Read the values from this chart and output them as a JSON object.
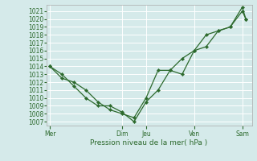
{
  "title": "",
  "xlabel": "Pression niveau de la mer( hPa )",
  "ylabel": "",
  "background_color": "#d5eaea",
  "grid_color": "#ffffff",
  "line_color": "#2d6a2d",
  "ylim": [
    1006.5,
    1021.8
  ],
  "yticks": [
    1007,
    1008,
    1009,
    1010,
    1011,
    1012,
    1013,
    1014,
    1015,
    1016,
    1017,
    1018,
    1019,
    1020,
    1021
  ],
  "x_ticks_labels": [
    "Mer",
    "Dim",
    "Jeu",
    "Ven",
    "Sam"
  ],
  "x_ticks_pos": [
    0,
    3,
    4,
    6,
    8
  ],
  "xlim": [
    -0.15,
    8.4
  ],
  "line1_x": [
    0,
    0.5,
    1.0,
    1.5,
    2.0,
    2.5,
    3.0,
    3.5,
    4.0,
    4.5,
    5.0,
    5.5,
    6.0,
    6.5,
    7.0,
    7.5,
    8.0,
    8.15
  ],
  "line1_y": [
    1014.0,
    1013.0,
    1011.5,
    1010.0,
    1009.0,
    1009.0,
    1008.2,
    1007.0,
    1009.5,
    1011.0,
    1013.5,
    1015.0,
    1016.0,
    1016.5,
    1018.5,
    1019.0,
    1021.0,
    1020.0
  ],
  "line2_x": [
    0,
    0.5,
    1.0,
    1.5,
    2.0,
    2.5,
    3.0,
    3.5,
    4.0,
    4.5,
    5.0,
    5.5,
    6.0,
    6.5,
    7.0,
    7.5,
    8.0,
    8.15
  ],
  "line2_y": [
    1014.0,
    1012.5,
    1012.0,
    1011.0,
    1009.5,
    1008.5,
    1008.0,
    1007.5,
    1010.0,
    1013.5,
    1013.5,
    1013.0,
    1016.0,
    1018.0,
    1018.5,
    1019.0,
    1021.5,
    1020.0
  ],
  "tick_fontsize": 5.5,
  "xlabel_fontsize": 6.5,
  "marker_size": 2.2,
  "linewidth": 0.9
}
